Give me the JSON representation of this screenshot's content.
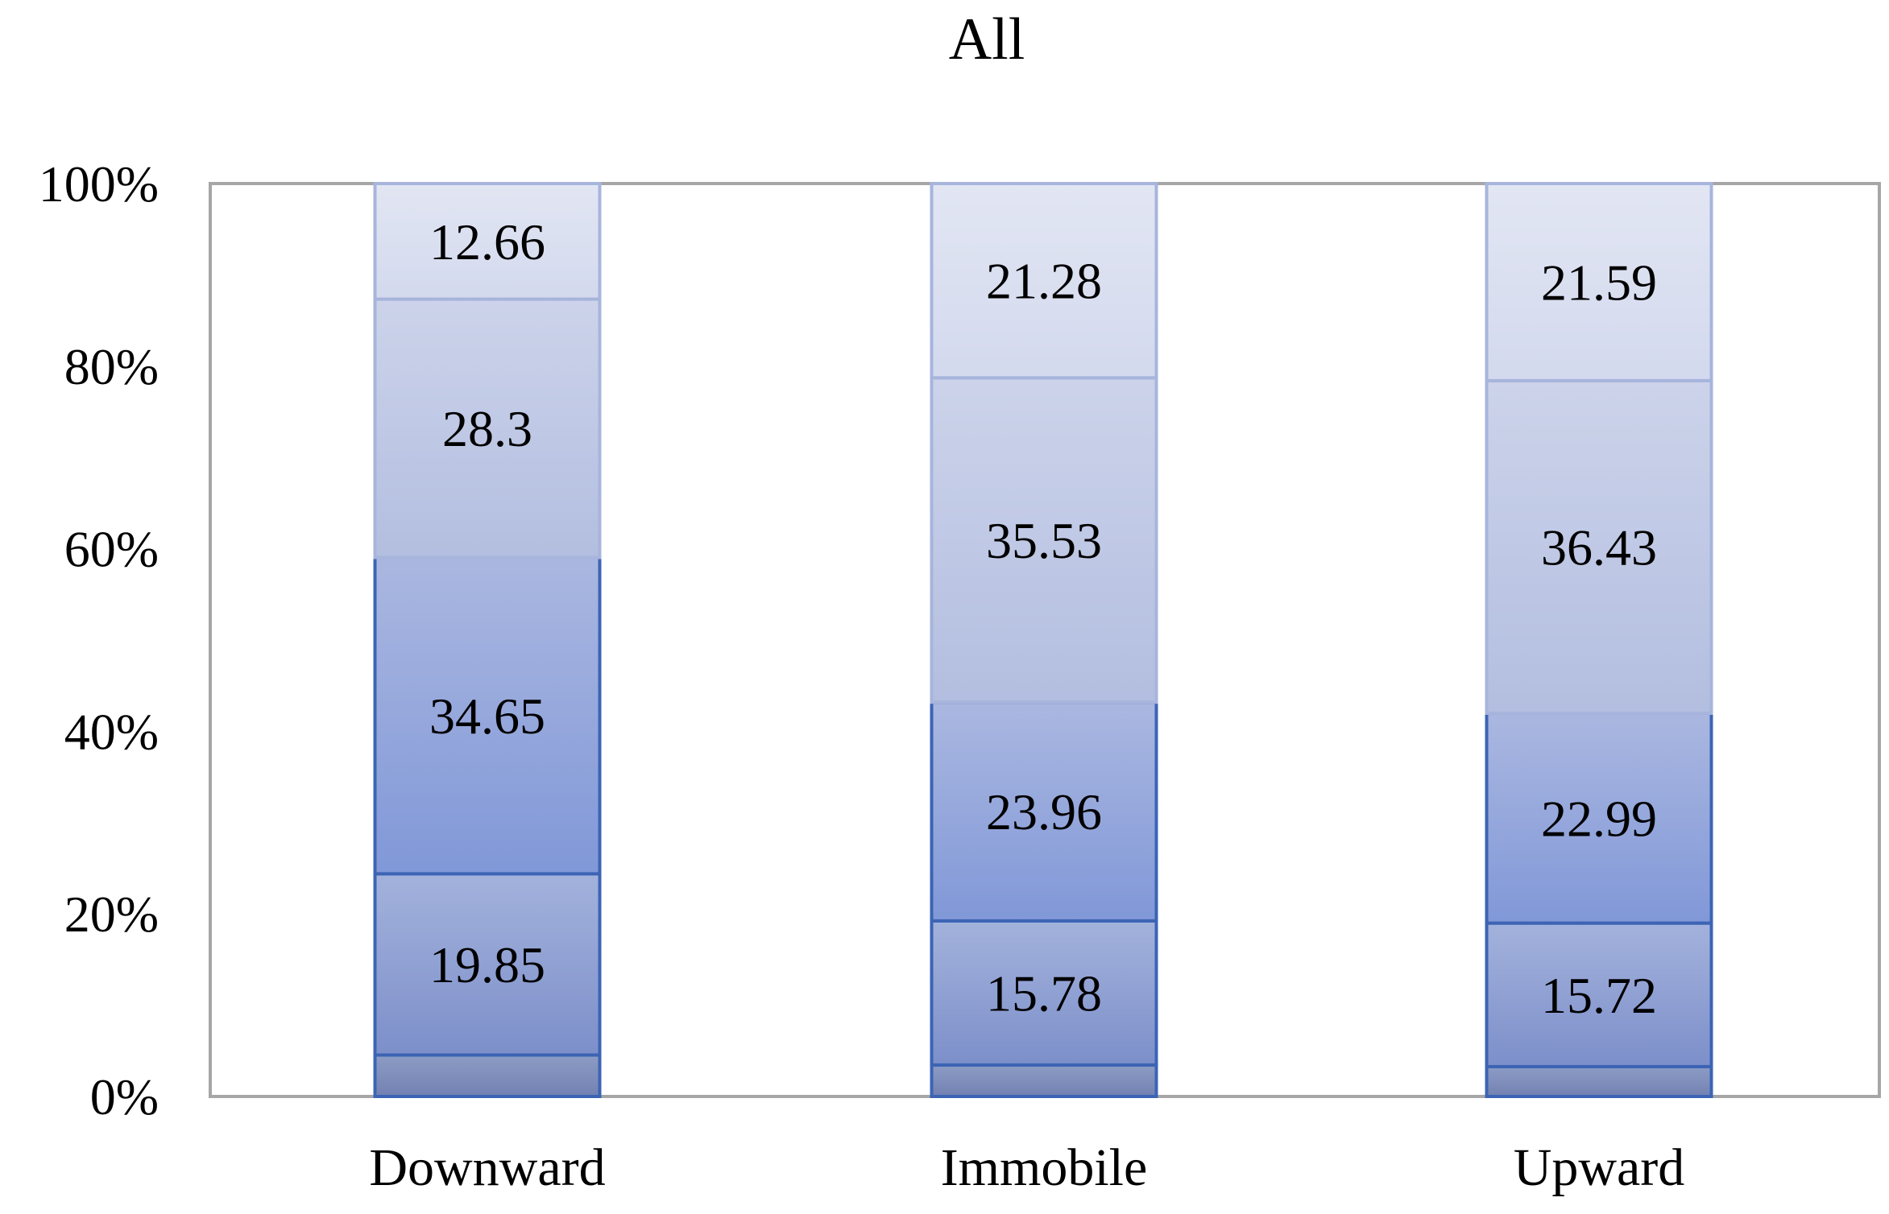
{
  "chart_data": {
    "type": "bar",
    "stacked": "percent",
    "title": "All",
    "xlabel": "",
    "ylabel": "",
    "ylim": [
      0,
      100
    ],
    "y_ticks": [
      "0%",
      "20%",
      "40%",
      "60%",
      "80%",
      "100%"
    ],
    "categories": [
      "Downward",
      "Immobile",
      "Upward"
    ],
    "series": [
      {
        "values": [
          4.54,
          3.45,
          3.27
        ],
        "labels": [
          "",
          "",
          ""
        ],
        "color_top": "#8c9cc4",
        "color_bottom": "#7381b3"
      },
      {
        "values": [
          19.85,
          15.78,
          15.72
        ],
        "labels": [
          "19.85",
          "15.78",
          "15.72"
        ],
        "color_top": "#a3b2dc",
        "color_bottom": "#7d8fca"
      },
      {
        "values": [
          34.65,
          23.96,
          22.99
        ],
        "labels": [
          "34.65",
          "23.96",
          "22.99"
        ],
        "color_top": "#aab7e0",
        "color_bottom": "#8198d8"
      },
      {
        "values": [
          28.3,
          35.53,
          36.43
        ],
        "labels": [
          "28.3",
          "35.53",
          "36.43"
        ],
        "color_top": "#ccd3ea",
        "color_bottom": "#b3bee0"
      },
      {
        "values": [
          12.66,
          21.28,
          21.59
        ],
        "labels": [
          "12.66",
          "21.28",
          "21.59"
        ],
        "color_top": "#e2e6f3",
        "color_bottom": "#d3d9ee"
      }
    ],
    "grid": false,
    "legend": "none",
    "colors": {
      "plot_border": "#a6a6a6",
      "segment_edge_dark": "#3c64b4",
      "segment_edge_light": "#a7b5dc"
    }
  }
}
